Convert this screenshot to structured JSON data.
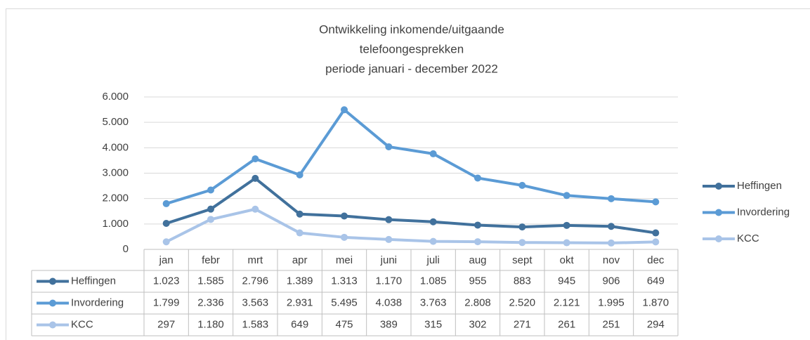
{
  "chart_data": {
    "type": "line",
    "title": [
      "Ontwikkeling inkomende/uitgaande",
      "telefoongesprekken",
      "periode januari - december 2022"
    ],
    "categories": [
      "jan",
      "febr",
      "mrt",
      "apr",
      "mei",
      "juni",
      "juli",
      "aug",
      "sept",
      "okt",
      "nov",
      "dec"
    ],
    "series": [
      {
        "name": "Heffingen",
        "color": "#41719c",
        "values": [
          1023,
          1585,
          2796,
          1389,
          1313,
          1170,
          1085,
          955,
          883,
          945,
          906,
          649
        ],
        "value_labels": [
          "1.023",
          "1.585",
          "2.796",
          "1.389",
          "1.313",
          "1.170",
          "1.085",
          "955",
          "883",
          "945",
          "906",
          "649"
        ]
      },
      {
        "name": "Invordering",
        "color": "#5b9bd5",
        "values": [
          1799,
          2336,
          3563,
          2931,
          5495,
          4038,
          3763,
          2808,
          2520,
          2121,
          1995,
          1870
        ],
        "value_labels": [
          "1.799",
          "2.336",
          "3.563",
          "2.931",
          "5.495",
          "4.038",
          "3.763",
          "2.808",
          "2.520",
          "2.121",
          "1.995",
          "1.870"
        ]
      },
      {
        "name": "KCC",
        "color": "#a9c4e8",
        "values": [
          297,
          1180,
          1583,
          649,
          475,
          389,
          315,
          302,
          271,
          261,
          251,
          294
        ],
        "value_labels": [
          "297",
          "1.180",
          "1.583",
          "649",
          "475",
          "389",
          "315",
          "302",
          "271",
          "261",
          "251",
          "294"
        ]
      }
    ],
    "ylim": [
      0,
      6000
    ],
    "yticks": [
      0,
      {
        "value": 1000,
        "label": "1.000"
      },
      {
        "value": 2000,
        "label": "2.000"
      },
      {
        "value": 3000,
        "label": "3.000"
      },
      {
        "value": 4000,
        "label": "4.000"
      },
      {
        "value": 5000,
        "label": "5.000"
      },
      {
        "value": 6000,
        "label": "6.000"
      }
    ],
    "grid": true,
    "legend": "right"
  }
}
